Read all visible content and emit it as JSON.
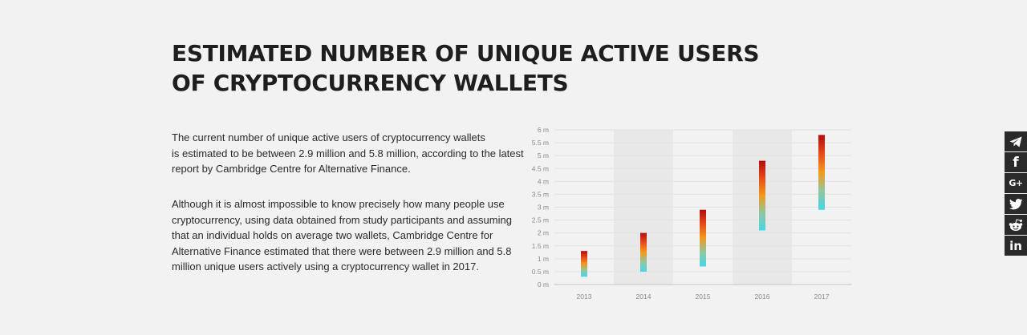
{
  "title": {
    "line1": "ESTIMATED NUMBER OF UNIQUE ACTIVE USERS",
    "line2": "OF CRYPTOCURRENCY WALLETS"
  },
  "paragraphs": {
    "p1": [
      "The current number of unique active users of cryptocurrency wallets",
      "is estimated to be between 2.9 million and 5.8 million, according to the latest",
      "report by Cambridge Centre for Alternative Finance."
    ],
    "p2": [
      "Although it is almost impossible to know precisely how many people use",
      "cryptocurrency, using data obtained from study participants and assuming",
      "that an individual holds on average two wallets, Cambridge Centre for",
      "Alternative Finance estimated that there were between 2.9 million and 5.8",
      "million unique users actively using a cryptocurrency wallet in 2017."
    ]
  },
  "chart_data": {
    "type": "bar",
    "subtype": "floating-range",
    "categories": [
      "2013",
      "2014",
      "2015",
      "2016",
      "2017"
    ],
    "series": [
      {
        "low": [
          0.3,
          0.5,
          0.7,
          2.1,
          2.9
        ],
        "high": [
          1.3,
          2.0,
          2.9,
          4.8,
          5.8
        ]
      }
    ],
    "ylim": [
      0,
      6
    ],
    "yticks": [
      0,
      0.5,
      1,
      1.5,
      2,
      2.5,
      3,
      3.5,
      4,
      4.5,
      5,
      5.5,
      6
    ],
    "ytick_labels": [
      "0 m",
      "0.5 m",
      "1 m",
      "1.5 m",
      "2 m",
      "2.5 m",
      "3 m",
      "3.5 m",
      "4 m",
      "4.5 m",
      "5 m",
      "5.5 m",
      "6 m"
    ],
    "grid": true,
    "alternating_band_color": "#e8e8e8",
    "gradient_colors": [
      "#b30c0c",
      "#e84a1b",
      "#f39a1d",
      "#8fc7a0",
      "#45d6e6"
    ]
  },
  "share": {
    "icons": [
      "telegram-icon",
      "facebook-icon",
      "google-plus-icon",
      "twitter-icon",
      "reddit-icon",
      "linkedin-icon"
    ],
    "google_plus_text": "G+",
    "facebook_text": "f",
    "linkedin_text": "in"
  }
}
